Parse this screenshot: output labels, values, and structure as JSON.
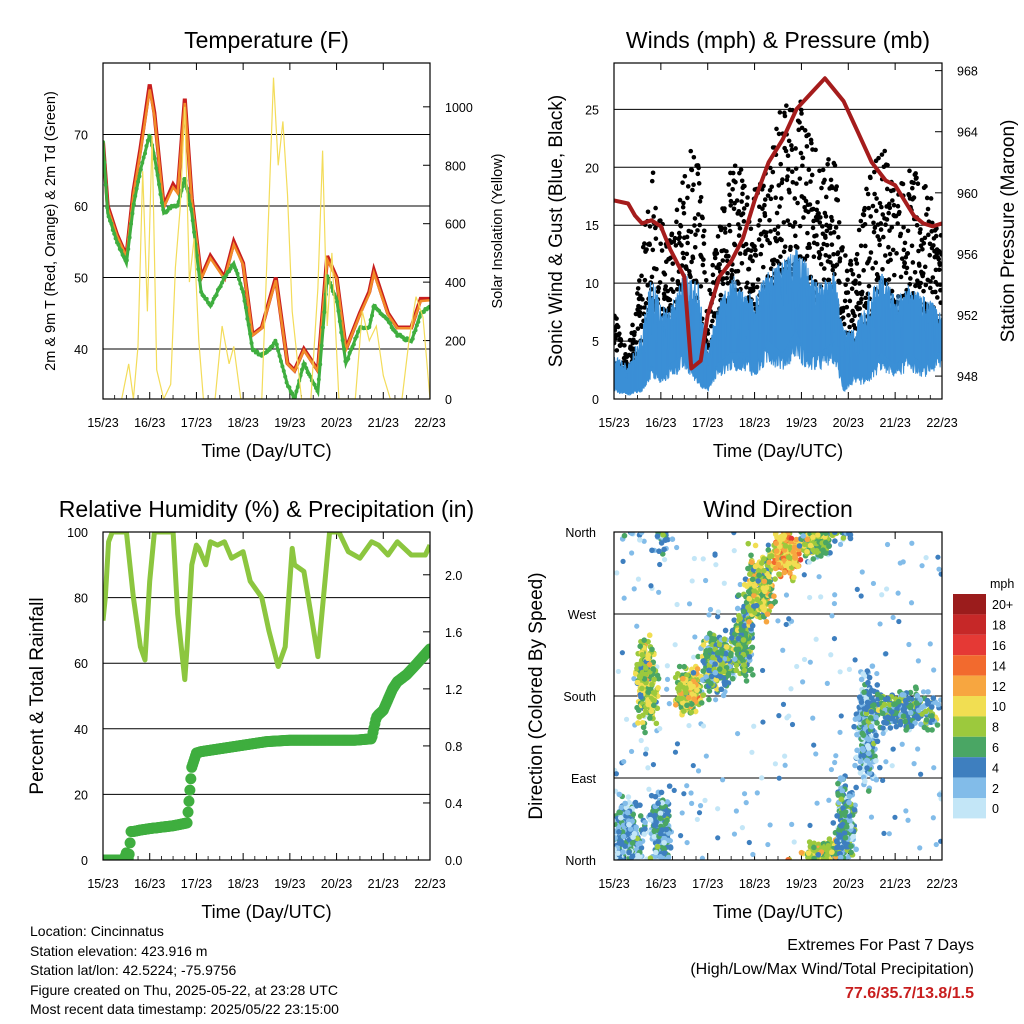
{
  "chart_data": [
    {
      "type": "line",
      "title": "Temperature (F)",
      "xlabel": "Time (Day/UTC)",
      "ylabel": "2m & 9m T (Red, Orange) & 2m Td (Green)",
      "ylabel_right": "Solar Insolation (Yellow)",
      "x_ticks": [
        "15/23",
        "16/23",
        "17/23",
        "18/23",
        "19/23",
        "20/23",
        "21/23",
        "22/23"
      ],
      "ylim": [
        33,
        80
      ],
      "y_ticks": [
        40,
        50,
        60,
        70
      ],
      "ylim_right": [
        0,
        1150
      ],
      "y_ticks_right": [
        0,
        200,
        400,
        600,
        800,
        1000
      ],
      "grid": "horizontal",
      "series": [
        {
          "color": "#c81e1e",
          "axis": "left",
          "style": "thick-line",
          "x": [
            0,
            0.1,
            0.3,
            0.5,
            0.65,
            0.8,
            1.0,
            1.1,
            1.3,
            1.5,
            1.6,
            1.75,
            1.9,
            2.1,
            2.3,
            2.6,
            2.8,
            3.0,
            3.2,
            3.4,
            3.7,
            3.95,
            4.1,
            4.3,
            4.6,
            4.8,
            5.0,
            5.2,
            5.5,
            5.7,
            5.8,
            6.1,
            6.3,
            6.6,
            6.8,
            7.0
          ],
          "y": [
            69,
            60,
            56,
            53,
            62,
            68,
            77,
            73,
            60,
            63,
            62,
            75,
            61,
            50,
            53,
            50,
            55,
            52,
            42,
            43,
            50,
            38,
            37,
            40,
            37,
            53,
            50,
            40,
            45,
            48,
            51,
            45,
            43,
            43,
            47,
            47
          ]
        },
        {
          "color": "#f28c28",
          "axis": "left",
          "style": "thick-line",
          "x": [
            0,
            0.1,
            0.3,
            0.5,
            0.65,
            0.8,
            1.0,
            1.1,
            1.3,
            1.5,
            1.6,
            1.75,
            1.9,
            2.1,
            2.3,
            2.6,
            2.8,
            3.0,
            3.2,
            3.4,
            3.7,
            3.95,
            4.1,
            4.3,
            4.6,
            4.8,
            5.0,
            5.2,
            5.5,
            5.7,
            5.8,
            6.1,
            6.3,
            6.6,
            6.8,
            7.0
          ],
          "y": [
            68.6,
            59.7,
            55.8,
            52.9,
            61.6,
            67.5,
            76.3,
            72.6,
            59.8,
            62.6,
            61.8,
            74.4,
            60.8,
            49.8,
            52.7,
            49.8,
            54.6,
            51.8,
            41.9,
            42.9,
            49.6,
            37.9,
            36.9,
            39.8,
            36.9,
            52.5,
            49.8,
            39.9,
            44.8,
            47.7,
            50.6,
            44.8,
            42.9,
            42.9,
            46.7,
            46.8
          ]
        },
        {
          "color": "#3fae3f",
          "axis": "left",
          "style": "dotted-line",
          "x": [
            0,
            0.1,
            0.3,
            0.5,
            0.65,
            0.8,
            1.0,
            1.1,
            1.3,
            1.5,
            1.6,
            1.75,
            1.9,
            2.1,
            2.3,
            2.6,
            2.8,
            3.0,
            3.2,
            3.4,
            3.7,
            3.95,
            4.1,
            4.3,
            4.6,
            4.8,
            5.0,
            5.2,
            5.5,
            5.7,
            5.8,
            6.1,
            6.3,
            6.6,
            6.8,
            7.0
          ],
          "y": [
            69,
            59,
            55,
            52,
            60,
            65,
            70,
            67,
            59,
            60,
            60,
            64,
            59,
            48,
            46,
            50,
            52,
            48,
            40,
            39,
            41,
            35,
            33,
            38,
            34,
            50,
            47,
            38,
            43,
            43,
            46,
            44,
            42,
            41,
            45,
            46
          ]
        },
        {
          "color": "#f3dc5a",
          "axis": "right",
          "style": "thin-line",
          "x": [
            0.4,
            0.55,
            0.65,
            0.75,
            0.85,
            0.95,
            1.05,
            1.15,
            1.3,
            1.45,
            1.55,
            1.65,
            1.75,
            1.85,
            1.95,
            2.05,
            2.15,
            2.4,
            2.55,
            2.7,
            2.8,
            2.95,
            3.4,
            3.55,
            3.65,
            3.75,
            3.85,
            3.95,
            4.05,
            4.25,
            4.45,
            4.6,
            4.7,
            4.8,
            4.9,
            5.05,
            5.4,
            5.55,
            5.7,
            5.85,
            6.0,
            6.15,
            6.4,
            6.55,
            6.7,
            6.85,
            7.0
          ],
          "y": [
            0,
            120,
            0,
            180,
            780,
            300,
            900,
            100,
            0,
            50,
            450,
            650,
            1000,
            400,
            550,
            200,
            0,
            0,
            250,
            120,
            180,
            0,
            0,
            650,
            1100,
            800,
            950,
            700,
            300,
            0,
            0,
            380,
            850,
            250,
            500,
            0,
            0,
            300,
            200,
            250,
            80,
            0,
            0,
            200,
            350,
            280,
            0
          ]
        }
      ]
    },
    {
      "type": "scatter",
      "title": "Winds (mph) & Pressure (mb)",
      "xlabel": "Time (Day/UTC)",
      "ylabel": "Sonic Wind & Gust (Blue, Black)",
      "ylabel_right": "Station Pressure (Maroon)",
      "x_ticks": [
        "15/23",
        "16/23",
        "17/23",
        "18/23",
        "19/23",
        "20/23",
        "21/23",
        "22/23"
      ],
      "ylim": [
        0,
        29
      ],
      "y_ticks": [
        0,
        5,
        10,
        15,
        20,
        25
      ],
      "ylim_right": [
        946.5,
        968.5
      ],
      "y_ticks_right": [
        948,
        952,
        956,
        960,
        964,
        968
      ],
      "grid": "horizontal",
      "series": [
        {
          "color": "#3a8fd6",
          "style": "dense-band",
          "x": [
            0,
            0.3,
            0.6,
            0.8,
            1.0,
            1.2,
            1.5,
            1.8,
            2.0,
            2.2,
            2.5,
            2.8,
            3.0,
            3.3,
            3.6,
            3.9,
            4.1,
            4.4,
            4.7,
            4.9,
            5.1,
            5.4,
            5.7,
            6.0,
            6.3,
            6.6,
            6.9,
            7.0
          ],
          "low": [
            1,
            0.5,
            1,
            3,
            2,
            3,
            4,
            2,
            1,
            3,
            4,
            4,
            3,
            5,
            4,
            6,
            4,
            4,
            5,
            1,
            2,
            2,
            4,
            3,
            4,
            3,
            4,
            4
          ],
          "high": [
            4,
            3,
            6,
            11,
            8,
            8,
            11,
            10,
            4,
            8,
            11,
            9,
            10,
            11,
            12,
            13,
            12,
            10,
            11,
            6,
            6,
            9,
            11,
            9,
            10,
            9,
            8,
            7
          ]
        },
        {
          "color": "#000000",
          "style": "dense-band",
          "x": [
            0,
            0.3,
            0.6,
            0.8,
            1.0,
            1.2,
            1.5,
            1.8,
            2.0,
            2.2,
            2.5,
            2.8,
            3.0,
            3.3,
            3.6,
            3.9,
            4.1,
            4.4,
            4.7,
            4.9,
            5.1,
            5.4,
            5.7,
            6.0,
            6.3,
            6.6,
            6.9,
            7.0
          ],
          "low": [
            2,
            1.5,
            3,
            8,
            5,
            5,
            8,
            6,
            2,
            5,
            7,
            8,
            7,
            9,
            9,
            10,
            9,
            8,
            9,
            4,
            4,
            6,
            8,
            7,
            8,
            7,
            6,
            6
          ],
          "high": [
            8,
            4,
            12,
            22,
            16,
            14,
            20,
            24,
            9,
            14,
            21,
            20,
            19,
            22,
            26,
            27,
            24,
            21,
            22,
            13,
            12,
            19,
            23,
            19,
            20,
            19,
            16,
            15
          ]
        },
        {
          "color": "#a51c1c",
          "style": "line",
          "axis": "right",
          "x": [
            0,
            0.3,
            0.45,
            0.6,
            0.8,
            1.0,
            1.2,
            1.5,
            1.65,
            1.85,
            2.0,
            2.25,
            2.5,
            2.75,
            3.0,
            3.3,
            3.6,
            3.9,
            4.2,
            4.5,
            4.9,
            5.2,
            5.5,
            5.8,
            6.0,
            6.2,
            6.4,
            6.6,
            6.8,
            7.0
          ],
          "y": [
            959.5,
            959.3,
            958.5,
            958,
            958.2,
            957.8,
            956.3,
            954.5,
            948.5,
            949,
            952,
            954.5,
            955.5,
            957,
            959.5,
            962,
            963.5,
            965.5,
            966.5,
            967.5,
            966,
            964,
            962,
            960.8,
            960.5,
            959.5,
            958.5,
            958,
            957.8,
            958
          ]
        }
      ]
    },
    {
      "type": "line",
      "title": "Relative Humidity (%) & Precipitation (in)",
      "xlabel": "Time (Day/UTC)",
      "ylabel": "Percent & Total Rainfall",
      "x_ticks": [
        "15/23",
        "16/23",
        "17/23",
        "18/23",
        "19/23",
        "20/23",
        "21/23",
        "22/23"
      ],
      "ylim": [
        0,
        100
      ],
      "y_ticks": [
        0,
        20,
        40,
        60,
        80,
        100
      ],
      "ylim_right": [
        0,
        2.3
      ],
      "y_ticks_right": [
        "0.0",
        "0.4",
        "0.8",
        "1.2",
        "1.6",
        "2.0"
      ],
      "grid": "horizontal",
      "series": [
        {
          "color": "#8cc63f",
          "axis": "left",
          "style": "thick-line",
          "x": [
            0,
            0.05,
            0.12,
            0.2,
            0.3,
            0.5,
            0.65,
            0.8,
            0.9,
            1.0,
            1.1,
            1.3,
            1.5,
            1.6,
            1.75,
            1.8,
            1.9,
            2.0,
            2.05,
            2.2,
            2.3,
            2.45,
            2.6,
            2.75,
            3.0,
            3.15,
            3.4,
            3.55,
            3.75,
            3.9,
            4.05,
            4.1,
            4.3,
            4.45,
            4.6,
            4.85,
            5.05,
            5.25,
            5.5,
            5.75,
            5.9,
            6.1,
            6.3,
            6.6,
            6.9,
            7.0
          ],
          "y": [
            73,
            80,
            97,
            100,
            100,
            100,
            80,
            65,
            61,
            85,
            100,
            100,
            100,
            75,
            55,
            65,
            90,
            96,
            95,
            90,
            97,
            96,
            97,
            92,
            94,
            85,
            80,
            70,
            59,
            65,
            95,
            90,
            88,
            75,
            62,
            100,
            100,
            94,
            92,
            97,
            96,
            93,
            97,
            93,
            93,
            96
          ]
        },
        {
          "color": "#3fae3f",
          "axis": "right",
          "style": "thick-dots",
          "x": [
            0,
            0.45,
            0.5,
            0.55,
            0.6,
            0.65,
            0.8,
            1.0,
            1.5,
            1.8,
            1.85,
            1.9,
            2.0,
            2.1,
            2.5,
            2.9,
            3.5,
            4.0,
            4.5,
            4.9,
            5.4,
            5.75,
            5.85,
            5.9,
            6.0,
            6.2,
            6.3,
            6.5,
            6.7,
            7.0
          ],
          "y": [
            0.0,
            0.0,
            0.05,
            0.0,
            0.2,
            0.2,
            0.21,
            0.22,
            0.24,
            0.26,
            0.45,
            0.65,
            0.75,
            0.76,
            0.78,
            0.8,
            0.83,
            0.84,
            0.84,
            0.84,
            0.84,
            0.85,
            1.0,
            1.02,
            1.05,
            1.2,
            1.25,
            1.3,
            1.37,
            1.48
          ]
        }
      ]
    },
    {
      "type": "scatter",
      "title": "Wind Direction",
      "xlabel": "Time (Day/UTC)",
      "ylabel": "Direction (Colored By Speed)",
      "x_ticks": [
        "15/23",
        "16/23",
        "17/23",
        "18/23",
        "19/23",
        "20/23",
        "21/23",
        "22/23"
      ],
      "y_ticks": [
        "North",
        "East",
        "South",
        "West",
        "North"
      ],
      "grid": "horizontal",
      "legend_title": "mph",
      "legend_labels": [
        "20+",
        "18",
        "16",
        "14",
        "12",
        "10",
        "8",
        "6",
        "4",
        "2",
        "0"
      ],
      "legend_colors": [
        "#9b1c1c",
        "#c62828",
        "#e53935",
        "#f26a2e",
        "#f7a640",
        "#f1de52",
        "#9cc93d",
        "#4aa664",
        "#3e7fbf",
        "#82bce9",
        "#c3e6f7"
      ],
      "clusters": [
        {
          "x": 0.3,
          "dir": 30,
          "spread_x": 0.3,
          "spread_y": 25,
          "speed": 3
        },
        {
          "x": 0.7,
          "dir": 195,
          "spread_x": 0.2,
          "spread_y": 30,
          "speed": 8
        },
        {
          "x": 1.0,
          "dir": 30,
          "spread_x": 0.2,
          "spread_y": 30,
          "speed": 4
        },
        {
          "x": 1.6,
          "dir": 185,
          "spread_x": 0.25,
          "spread_y": 15,
          "speed": 9
        },
        {
          "x": 2.2,
          "dir": 215,
          "spread_x": 0.3,
          "spread_y": 20,
          "speed": 6
        },
        {
          "x": 2.75,
          "dir": 240,
          "spread_x": 0.2,
          "spread_y": 25,
          "speed": 6
        },
        {
          "x": 3.1,
          "dir": 300,
          "spread_x": 0.3,
          "spread_y": 25,
          "speed": 8
        },
        {
          "x": 3.7,
          "dir": 335,
          "spread_x": 0.3,
          "spread_y": 15,
          "speed": 11
        },
        {
          "x": 4.3,
          "dir": 350,
          "spread_x": 0.3,
          "spread_y": 10,
          "speed": 7
        },
        {
          "x": 4.5,
          "dir": 8,
          "spread_x": 0.35,
          "spread_y": 8,
          "speed": 8
        },
        {
          "x": 4.95,
          "dir": 40,
          "spread_x": 0.2,
          "spread_y": 30,
          "speed": 4
        },
        {
          "x": 5.4,
          "dir": 140,
          "spread_x": 0.2,
          "spread_y": 40,
          "speed": 3
        },
        {
          "x": 6.2,
          "dir": 165,
          "spread_x": 0.8,
          "spread_y": 15,
          "speed": 5
        }
      ]
    }
  ],
  "footer": {
    "location": "Location: Cincinnatus",
    "elevation": "Station elevation: 423.916 m",
    "latlon": "Station lat/lon: 42.5224; -75.9756",
    "created": "Figure created on Thu, 2025-05-22, at 23:28 UTC",
    "recent": "Most recent data timestamp: 2025/05/22 23:15:00",
    "extremes_title": "Extremes For Past 7 Days",
    "extremes_sub": "(High/Low/Max Wind/Total Precipitation)",
    "extremes_values": "77.6/35.7/13.8/1.5"
  }
}
